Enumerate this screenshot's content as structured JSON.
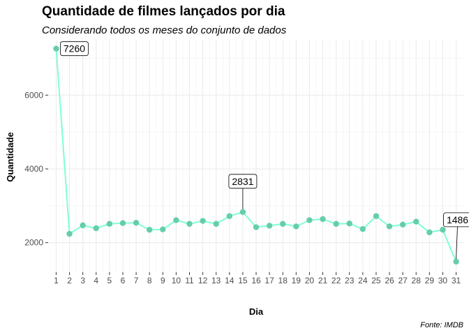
{
  "title": "Quantidade de filmes lançados por dia",
  "subtitle": "Considerando todos os meses do conjunto de dados",
  "caption": "Fonte: IMDB",
  "chart_data": {
    "type": "line",
    "xlabel": "Dia",
    "ylabel": "Quantidade",
    "x": [
      1,
      2,
      3,
      4,
      5,
      6,
      7,
      8,
      9,
      10,
      11,
      12,
      13,
      14,
      15,
      16,
      17,
      18,
      19,
      20,
      21,
      22,
      23,
      24,
      25,
      26,
      27,
      28,
      29,
      30,
      31
    ],
    "values": [
      7260,
      2240,
      2470,
      2390,
      2510,
      2530,
      2540,
      2350,
      2360,
      2610,
      2510,
      2590,
      2510,
      2720,
      2831,
      2420,
      2460,
      2510,
      2440,
      2610,
      2640,
      2510,
      2520,
      2370,
      2720,
      2440,
      2490,
      2570,
      2280,
      2350,
      1486
    ],
    "annotated_points": [
      {
        "x": 1,
        "label": "7260"
      },
      {
        "x": 15,
        "label": "2831"
      },
      {
        "x": 31,
        "label": "1486"
      }
    ],
    "y_ticks": [
      2000,
      4000,
      6000
    ],
    "ylim": [
      1200,
      7500
    ],
    "xlim": [
      0.4,
      31.6
    ],
    "grid": true,
    "line_color": "#7fffd4",
    "point_color": "#66cdaa"
  }
}
